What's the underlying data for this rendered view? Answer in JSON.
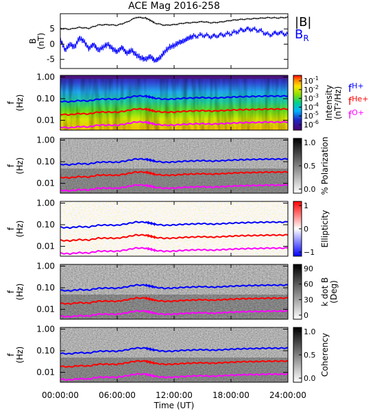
{
  "chart_data": [
    {
      "type": "line",
      "title": "ACE Mag 2016-258",
      "ylabel": [
        "B",
        "(nT)"
      ],
      "yticks": [
        -5,
        0,
        5
      ],
      "ylim": [
        -8,
        10
      ],
      "xlim": [
        0,
        24
      ],
      "legend": [
        {
          "text": "|B|",
          "color": "#000000"
        },
        {
          "text": "B",
          "sub": "R",
          "color": "#0000ff"
        }
      ],
      "series": [
        {
          "name": "|B|",
          "color": "#000000",
          "x": [
            0,
            1,
            2,
            3,
            4,
            5,
            6,
            7,
            8,
            9,
            9.5,
            10,
            11,
            12,
            13,
            14,
            15,
            16,
            17,
            18,
            19,
            20,
            21,
            22,
            23,
            24
          ],
          "y": [
            5.2,
            4.9,
            5.5,
            5.2,
            6.3,
            6.4,
            6.2,
            7.2,
            8.8,
            8.6,
            7.8,
            6.9,
            6.2,
            6.4,
            6.9,
            7.1,
            7.4,
            7.0,
            7.3,
            7.8,
            8.1,
            8.3,
            8.5,
            8.7,
            8.6,
            8.8
          ]
        },
        {
          "name": "B_R",
          "color": "#0000ff",
          "x": [
            0,
            0.5,
            1,
            1.5,
            2,
            2.5,
            3,
            3.5,
            4,
            4.5,
            5,
            5.5,
            6,
            6.5,
            7,
            7.5,
            8,
            8.5,
            9,
            9.5,
            10,
            10.5,
            11,
            11.5,
            12,
            12.5,
            13,
            13.5,
            14,
            15,
            16,
            17,
            18,
            19,
            20,
            21,
            22,
            23,
            24
          ],
          "y": [
            1.5,
            -2,
            0,
            -1,
            2,
            1,
            -1.5,
            0,
            -2,
            -1,
            0,
            -1.5,
            -2.5,
            -1,
            -3,
            -2,
            -3.5,
            -4.5,
            -5,
            -4,
            -5.5,
            -4.5,
            -2.5,
            -1,
            -0.5,
            0.5,
            1,
            2,
            2.5,
            3,
            2.5,
            3,
            3.5,
            4.5,
            5,
            4.5,
            3,
            3.8,
            3.2
          ]
        }
      ]
    },
    {
      "type": "heatmap",
      "ylabel": [
        "f",
        "(Hz)"
      ],
      "yticks": [
        "1.00",
        "0.10",
        "0.01"
      ],
      "colorbar": {
        "label": [
          "Intensity",
          "(nT²/Hz)"
        ],
        "ticks": [
          "10",
          "10",
          "10",
          "10",
          "10",
          "10"
        ],
        "exps": [
          "-1",
          "-2",
          "-3",
          "-4",
          "-5",
          "-6"
        ]
      },
      "legend": [
        {
          "text": "f",
          "sub": "H+",
          "color": "#0000ff"
        },
        {
          "text": "f",
          "sub": "He+",
          "color": "#ff0000"
        },
        {
          "text": "f",
          "sub": "O+",
          "color": "#ff00ff"
        }
      ]
    },
    {
      "type": "heatmap",
      "ylabel": [
        "f",
        "(Hz)"
      ],
      "yticks": [
        "1.00",
        "0.10",
        "0.01"
      ],
      "colorbar": {
        "label": [
          "% Polarization"
        ],
        "ticks": [
          "1.0",
          "0.5",
          "0.0"
        ]
      }
    },
    {
      "type": "heatmap",
      "ylabel": [
        "f",
        "(Hz)"
      ],
      "yticks": [
        "1.00",
        "0.10",
        "0.01"
      ],
      "colorbar": {
        "label": [
          "Ellipticity"
        ],
        "ticks": [
          "1",
          "0",
          "−1"
        ]
      }
    },
    {
      "type": "heatmap",
      "ylabel": [
        "f",
        "(Hz)"
      ],
      "yticks": [
        "1.00",
        "0.10",
        "0.01"
      ],
      "colorbar": {
        "label": [
          "k dot B",
          "(Deg)"
        ],
        "ticks": [
          "90",
          "60",
          "30",
          "0"
        ]
      }
    },
    {
      "type": "heatmap",
      "ylabel": [
        "f",
        "(Hz)"
      ],
      "yticks": [
        "1.00",
        "0.10",
        "0.01"
      ],
      "colorbar": {
        "label": [
          "Coherency"
        ],
        "ticks": [
          "1.0",
          "0.5",
          "0.0"
        ]
      },
      "xticks": [
        "00:00:00",
        "06:00:00",
        "12:00:00",
        "18:00:00",
        "24:00:00"
      ],
      "xlabel": "Time (UT)"
    }
  ],
  "gyro_lines": {
    "hours": [
      0,
      1,
      2,
      3,
      4,
      5,
      6,
      7,
      8,
      9,
      9.5,
      10,
      11,
      12,
      13,
      14,
      15,
      16,
      17,
      18,
      19,
      20,
      21,
      22,
      23,
      24
    ],
    "H": [
      0.076,
      0.072,
      0.082,
      0.078,
      0.095,
      0.097,
      0.094,
      0.11,
      0.134,
      0.131,
      0.118,
      0.105,
      0.094,
      0.097,
      0.105,
      0.108,
      0.113,
      0.106,
      0.111,
      0.118,
      0.123,
      0.126,
      0.129,
      0.132,
      0.131,
      0.134
    ],
    "He": [
      0.019,
      0.018,
      0.0205,
      0.0195,
      0.024,
      0.024,
      0.0235,
      0.0275,
      0.0335,
      0.033,
      0.0295,
      0.026,
      0.0235,
      0.024,
      0.026,
      0.027,
      0.028,
      0.0265,
      0.028,
      0.0295,
      0.031,
      0.0315,
      0.032,
      0.033,
      0.033,
      0.0335
    ],
    "O": [
      0.0048,
      0.0045,
      0.0051,
      0.0049,
      0.006,
      0.006,
      0.0059,
      0.0069,
      0.0084,
      0.0082,
      0.0074,
      0.0065,
      0.0059,
      0.006,
      0.0065,
      0.0068,
      0.007,
      0.0066,
      0.007,
      0.0074,
      0.0077,
      0.0079,
      0.008,
      0.0083,
      0.0082,
      0.0084
    ]
  },
  "colors": {
    "H": "#0000ff",
    "He": "#ff0000",
    "O": "#ff00ff"
  }
}
